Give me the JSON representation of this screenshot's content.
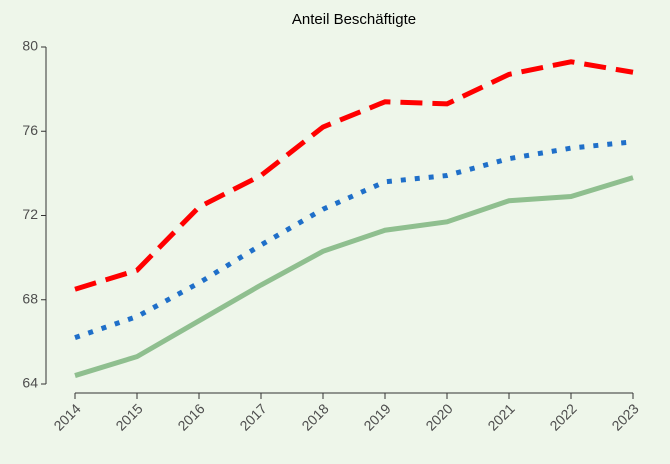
{
  "chart_data": {
    "type": "line",
    "title": "Anteil Beschäftigte",
    "categories": [
      "2014",
      "2015",
      "2016",
      "2017",
      "2018",
      "2019",
      "2020",
      "2021",
      "2022",
      "2023"
    ],
    "series": [
      {
        "color": "#ff0000",
        "dash": "dashed",
        "values": [
          68.5,
          69.4,
          72.4,
          73.9,
          76.2,
          77.4,
          77.3,
          78.7,
          79.3,
          78.8
        ]
      },
      {
        "color": "#1f6fc9",
        "dash": "dotted",
        "values": [
          66.2,
          67.2,
          68.8,
          70.6,
          72.3,
          73.6,
          73.9,
          74.7,
          75.2,
          75.5
        ]
      },
      {
        "color": "#8fbf8f",
        "dash": "solid",
        "values": [
          64.4,
          65.3,
          67.0,
          68.7,
          70.3,
          71.3,
          71.7,
          72.7,
          72.9,
          73.8
        ]
      }
    ],
    "ylim": [
      64,
      80
    ],
    "yticks": [
      64,
      68,
      72,
      76,
      80
    ],
    "grid": false
  }
}
